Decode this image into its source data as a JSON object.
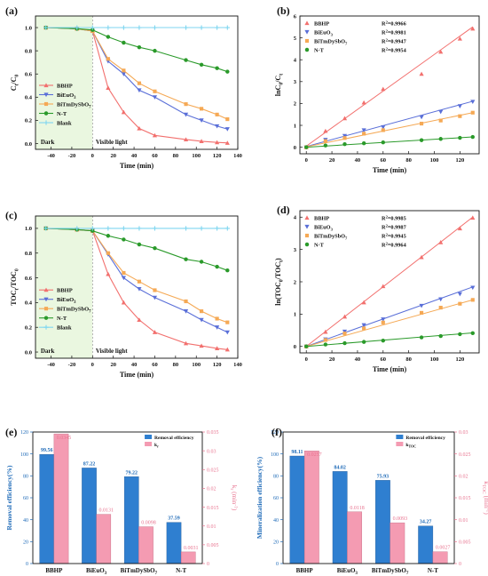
{
  "colors": {
    "BBHP": "#f2706e",
    "BiEuO3": "#5a6fd8",
    "BiTmDySbO7": "#f5a955",
    "N-T": "#2a9a2a",
    "Blank": "#7fd6f0",
    "dark_region": "#eaf7e0",
    "bar_removal": "#2f7fd0",
    "bar_k": "#f49bb2",
    "bar_label_left": "#1f6bb8",
    "bar_label_right": "#e8738f"
  },
  "chart_data": [
    {
      "panel": "(a)",
      "type": "line",
      "x": [
        -45,
        -15,
        0,
        15,
        30,
        45,
        60,
        90,
        105,
        120,
        130
      ],
      "series": [
        {
          "name": "BBHP",
          "values": [
            1.0,
            0.99,
            0.97,
            0.48,
            0.27,
            0.13,
            0.07,
            0.035,
            0.02,
            0.01,
            0.005
          ],
          "marker": "triangle-up"
        },
        {
          "name": "BiEuO3",
          "values": [
            1.0,
            0.99,
            0.97,
            0.71,
            0.6,
            0.46,
            0.4,
            0.25,
            0.2,
            0.15,
            0.125
          ],
          "marker": "triangle-down"
        },
        {
          "name": "BiTmDySbO7",
          "values": [
            1.0,
            0.99,
            0.97,
            0.73,
            0.63,
            0.52,
            0.45,
            0.34,
            0.3,
            0.25,
            0.21
          ],
          "marker": "square"
        },
        {
          "name": "N-T",
          "values": [
            1.0,
            0.99,
            0.98,
            0.92,
            0.87,
            0.83,
            0.8,
            0.72,
            0.68,
            0.65,
            0.62
          ],
          "marker": "circle"
        },
        {
          "name": "Blank",
          "values": [
            1.0,
            1.0,
            1.0,
            1.0,
            1.0,
            1.0,
            1.0,
            1.0,
            1.0,
            1.0,
            1.0
          ],
          "marker": "plus"
        }
      ],
      "xlabel": "Time (min)",
      "ylabel": "Ct/C0",
      "xlim": [
        -55,
        140
      ],
      "ylim": [
        -0.05,
        1.1
      ],
      "xticks": [
        -40,
        -20,
        0,
        20,
        40,
        60,
        80,
        100,
        120,
        140
      ],
      "yticks": [
        0.0,
        0.2,
        0.4,
        0.6,
        0.8,
        1.0
      ],
      "dark_label": "Dark",
      "light_label": "Visible light",
      "dark_range": [
        -55,
        0
      ],
      "legend": "bottom-left"
    },
    {
      "panel": "(b)",
      "type": "scatter",
      "x": [
        0,
        15,
        30,
        45,
        60,
        90,
        105,
        120,
        130
      ],
      "series": [
        {
          "name": "BBHP",
          "r2": "R²=0.9966",
          "values": [
            0,
            0.74,
            1.32,
            2.04,
            2.66,
            3.35,
            4.36,
            4.96,
            5.42
          ],
          "fit": [
            0.05,
            5.5
          ],
          "marker": "triangle-up"
        },
        {
          "name": "BiEuO3",
          "r2": "R²=0.9981",
          "values": [
            0,
            0.34,
            0.52,
            0.78,
            0.92,
            1.38,
            1.62,
            1.88,
            2.08
          ],
          "fit": [
            0.03,
            2.1
          ],
          "marker": "triangle-down"
        },
        {
          "name": "BiTmDySbO7",
          "r2": "R²=0.9947",
          "values": [
            0,
            0.28,
            0.42,
            0.62,
            0.78,
            1.08,
            1.22,
            1.42,
            1.58
          ],
          "fit": [
            0.02,
            1.58
          ],
          "marker": "square"
        },
        {
          "name": "N-T",
          "r2": "R²=0.9954",
          "values": [
            0,
            0.08,
            0.14,
            0.18,
            0.22,
            0.32,
            0.38,
            0.43,
            0.47
          ],
          "fit": [
            0.0,
            0.47
          ],
          "marker": "circle"
        }
      ],
      "xlabel": "Time (min)",
      "ylabel": "lnC0/Ct",
      "xlim": [
        -5,
        135
      ],
      "ylim": [
        -0.3,
        6
      ],
      "xticks": [
        0,
        20,
        40,
        60,
        80,
        100,
        120
      ],
      "yticks": [
        0,
        1,
        2,
        3,
        4,
        5,
        6
      ],
      "legend": "top-left"
    },
    {
      "panel": "(c)",
      "type": "line",
      "x": [
        -45,
        -15,
        0,
        15,
        30,
        45,
        60,
        90,
        105,
        120,
        130
      ],
      "series": [
        {
          "name": "BBHP",
          "values": [
            1.0,
            0.99,
            0.98,
            0.63,
            0.4,
            0.26,
            0.16,
            0.07,
            0.05,
            0.03,
            0.02
          ],
          "marker": "triangle-up"
        },
        {
          "name": "BiEuO3",
          "values": [
            1.0,
            0.99,
            0.98,
            0.79,
            0.6,
            0.51,
            0.44,
            0.33,
            0.26,
            0.2,
            0.16
          ],
          "marker": "triangle-down"
        },
        {
          "name": "BiTmDySbO7",
          "values": [
            1.0,
            0.99,
            0.98,
            0.8,
            0.64,
            0.57,
            0.5,
            0.41,
            0.33,
            0.27,
            0.24
          ],
          "marker": "square"
        },
        {
          "name": "N-T",
          "values": [
            1.0,
            0.99,
            0.98,
            0.94,
            0.91,
            0.87,
            0.84,
            0.75,
            0.73,
            0.69,
            0.66
          ],
          "marker": "circle"
        },
        {
          "name": "Blank",
          "values": [
            1.0,
            1.0,
            1.0,
            1.0,
            1.0,
            1.0,
            1.0,
            1.0,
            1.0,
            1.0,
            1.0
          ],
          "marker": "plus"
        }
      ],
      "xlabel": "Time (min)",
      "ylabel": "TOCt/TOC0",
      "xlim": [
        -55,
        140
      ],
      "ylim": [
        -0.05,
        1.1
      ],
      "xticks": [
        -40,
        -20,
        0,
        20,
        40,
        60,
        80,
        100,
        120,
        140
      ],
      "yticks": [
        0.0,
        0.2,
        0.4,
        0.6,
        0.8,
        1.0
      ],
      "dark_label": "Dark",
      "light_label": "Visible light",
      "dark_range": [
        -55,
        0
      ],
      "legend": "bottom-left"
    },
    {
      "panel": "(d)",
      "type": "scatter",
      "x": [
        0,
        15,
        30,
        45,
        60,
        90,
        105,
        120,
        130
      ],
      "series": [
        {
          "name": "BBHP",
          "r2": "R²=0.9985",
          "values": [
            0,
            0.45,
            0.92,
            1.36,
            1.86,
            2.76,
            3.22,
            3.65,
            3.98
          ],
          "fit": [
            0.0,
            4.0
          ],
          "marker": "triangle-up"
        },
        {
          "name": "BiEuO3",
          "r2": "R²=0.9987",
          "values": [
            0,
            0.22,
            0.46,
            0.66,
            0.84,
            1.26,
            1.46,
            1.62,
            1.82
          ],
          "fit": [
            0.0,
            1.84
          ],
          "marker": "triangle-down"
        },
        {
          "name": "BiTmDySbO7",
          "r2": "R²=0.9945",
          "values": [
            0,
            0.2,
            0.4,
            0.56,
            0.74,
            1.04,
            1.2,
            1.32,
            1.44
          ],
          "fit": [
            0.0,
            1.44
          ],
          "marker": "square"
        },
        {
          "name": "N-T",
          "r2": "R²=0.9964",
          "values": [
            0,
            0.06,
            0.1,
            0.14,
            0.18,
            0.28,
            0.32,
            0.38,
            0.41
          ],
          "fit": [
            0.0,
            0.42
          ],
          "marker": "circle"
        }
      ],
      "xlabel": "Time (min)",
      "ylabel": "ln(TOC0/TOCt)",
      "xlim": [
        -5,
        135
      ],
      "ylim": [
        -0.2,
        4.2
      ],
      "xticks": [
        0,
        20,
        40,
        60,
        80,
        100,
        120
      ],
      "yticks": [
        0,
        1,
        2,
        3,
        4
      ],
      "legend": "top-left"
    },
    {
      "panel": "(e)",
      "type": "bar",
      "categories": [
        "BBHP",
        "BiEuO3",
        "BiTmDySbO7",
        "N-T"
      ],
      "series": [
        {
          "name": "Removal efficiency",
          "axis": "left",
          "values": [
            99.56,
            87.22,
            79.22,
            37.59
          ],
          "labels": [
            "99.56",
            "87.22",
            "79.22",
            "37.59"
          ]
        },
        {
          "name": "kr",
          "axis": "right",
          "values": [
            0.0345,
            0.0131,
            0.0098,
            0.0031
          ],
          "labels": [
            "0.0345",
            "0.0131",
            "0.0098",
            "0.0031"
          ]
        }
      ],
      "ylabel": "Removal efficiency(%)",
      "y2label": "kr (min⁻¹)",
      "ylim": [
        0,
        120
      ],
      "y2lim": [
        0,
        0.035
      ],
      "yticks": [
        0,
        20,
        40,
        60,
        80,
        100,
        120
      ],
      "y2ticks": [
        0.0,
        0.005,
        0.01,
        0.015,
        0.02,
        0.025,
        0.03,
        0.035
      ],
      "legend": "top-right"
    },
    {
      "panel": "(f)",
      "type": "bar",
      "categories": [
        "BBHP",
        "BiEuO3",
        "BiTmDySbO7",
        "N-T"
      ],
      "series": [
        {
          "name": "Removal efficiency",
          "axis": "left",
          "values": [
            98.11,
            84.02,
            75.93,
            34.27
          ],
          "labels": [
            "98.11",
            "84.02",
            "75.93",
            "34.27"
          ]
        },
        {
          "name": "kTOC",
          "axis": "right",
          "values": [
            0.0257,
            0.0118,
            0.0093,
            0.0027
          ],
          "labels": [
            "0.0257",
            "0.0118",
            "0.0093",
            "0.0027"
          ]
        }
      ],
      "ylabel": "Mineralization efficiency(%)",
      "y2label": "kTOC (min⁻¹)",
      "ylim": [
        0,
        120
      ],
      "y2lim": [
        0,
        0.03
      ],
      "yticks": [
        0,
        20,
        40,
        60,
        80,
        100,
        120
      ],
      "y2ticks": [
        0.0,
        0.005,
        0.01,
        0.015,
        0.02,
        0.025,
        0.03
      ],
      "legend": "top-right"
    }
  ]
}
